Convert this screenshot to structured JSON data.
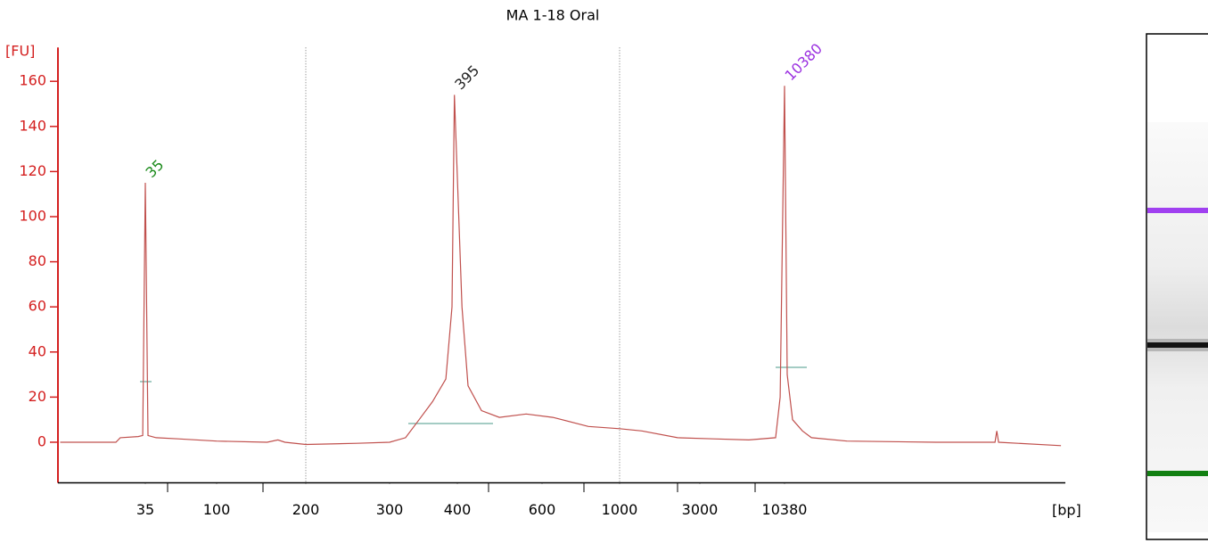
{
  "chart_data": {
    "type": "line",
    "title": "MA 1-18 Oral",
    "ylabel": "[FU]",
    "xlabel": "[bp]",
    "color": "#c0504d",
    "axis_color": "#d42020",
    "x": [
      10,
      22.7,
      24.2,
      31.5,
      33.7,
      35,
      36.4,
      41,
      56.7,
      100,
      148,
      161,
      170,
      200,
      256,
      300,
      321,
      340,
      360,
      381,
      391,
      395,
      409,
      421,
      449,
      489,
      556,
      644,
      814,
      1000,
      1357,
      2212,
      3650,
      6156,
      9110,
      9730,
      10380,
      10800,
      11680,
      13490,
      15400,
      25900,
      95800,
      227000,
      233000,
      239000,
      597000
    ],
    "values": [
      0,
      0,
      2,
      2.5,
      3,
      115,
      3,
      2,
      1.5,
      0.5,
      0,
      1,
      0,
      -1,
      -0.5,
      0,
      2,
      10,
      18,
      28,
      60,
      154,
      60,
      25,
      14,
      11,
      12.5,
      11,
      7,
      6,
      5,
      2,
      1.5,
      1,
      2,
      20,
      158,
      30,
      10,
      5,
      2,
      0.5,
      0,
      0,
      5,
      0,
      -1.5
    ],
    "ylim": [
      -18,
      175
    ],
    "yticks": [
      0,
      20,
      40,
      60,
      80,
      100,
      120,
      140,
      160
    ],
    "xticks": [
      35,
      100,
      200,
      300,
      400,
      600,
      1000,
      3000,
      10380
    ],
    "vlines": [
      200,
      1000
    ],
    "annotations": [
      {
        "text": "35",
        "x": 35,
        "y": 115,
        "color": "#1a8a1a"
      },
      {
        "text": "395",
        "x": 395,
        "y": 154,
        "color": "#222222"
      },
      {
        "text": "10380",
        "x": 10380,
        "y": 158,
        "color": "#9b30e0"
      }
    ]
  }
}
